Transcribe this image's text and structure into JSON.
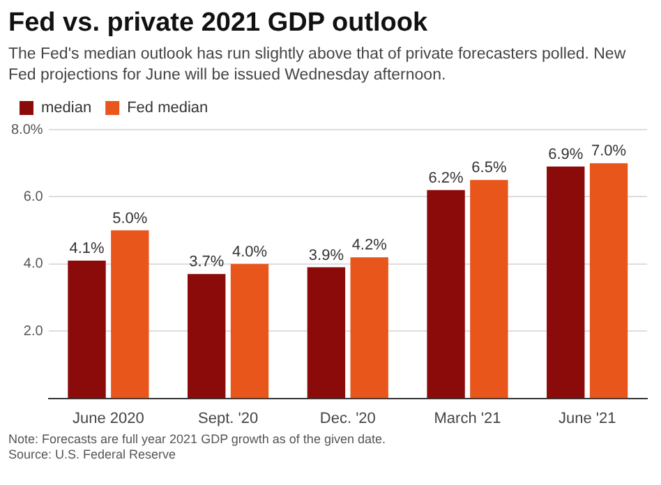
{
  "chart_data": {
    "type": "bar",
    "title": "Fed vs. private 2021 GDP outlook",
    "subtitle": "The Fed's median outlook has run slightly above that of private forecasters polled. New Fed projections for June will be issued Wednesday afternoon.",
    "categories": [
      "June 2020",
      "Sept. '20",
      "Dec. '20",
      "March '21",
      "June '21"
    ],
    "series": [
      {
        "name": "median",
        "color": "#8b0a0a",
        "values": [
          4.1,
          3.7,
          3.9,
          6.2,
          6.9
        ],
        "value_labels": [
          "4.1%",
          "3.7%",
          "3.9%",
          "6.2%",
          "6.9%"
        ]
      },
      {
        "name": "Fed median",
        "color": "#e8561c",
        "values": [
          5.0,
          4.0,
          4.2,
          6.5,
          7.0
        ],
        "value_labels": [
          "5.0%",
          "4.0%",
          "4.2%",
          "6.5%",
          "7.0%"
        ]
      }
    ],
    "ylim": [
      0,
      8
    ],
    "yticks": [
      {
        "value": 2,
        "label": "2.0"
      },
      {
        "value": 4,
        "label": "4.0"
      },
      {
        "value": 6,
        "label": "6.0"
      },
      {
        "value": 8,
        "label": "8.0%"
      }
    ],
    "grid": "y",
    "legend": "top left",
    "annotations": [
      "Note: Forecasts are full year 2021 GDP growth as of the given date.",
      "Source: U.S. Federal Reserve"
    ]
  }
}
